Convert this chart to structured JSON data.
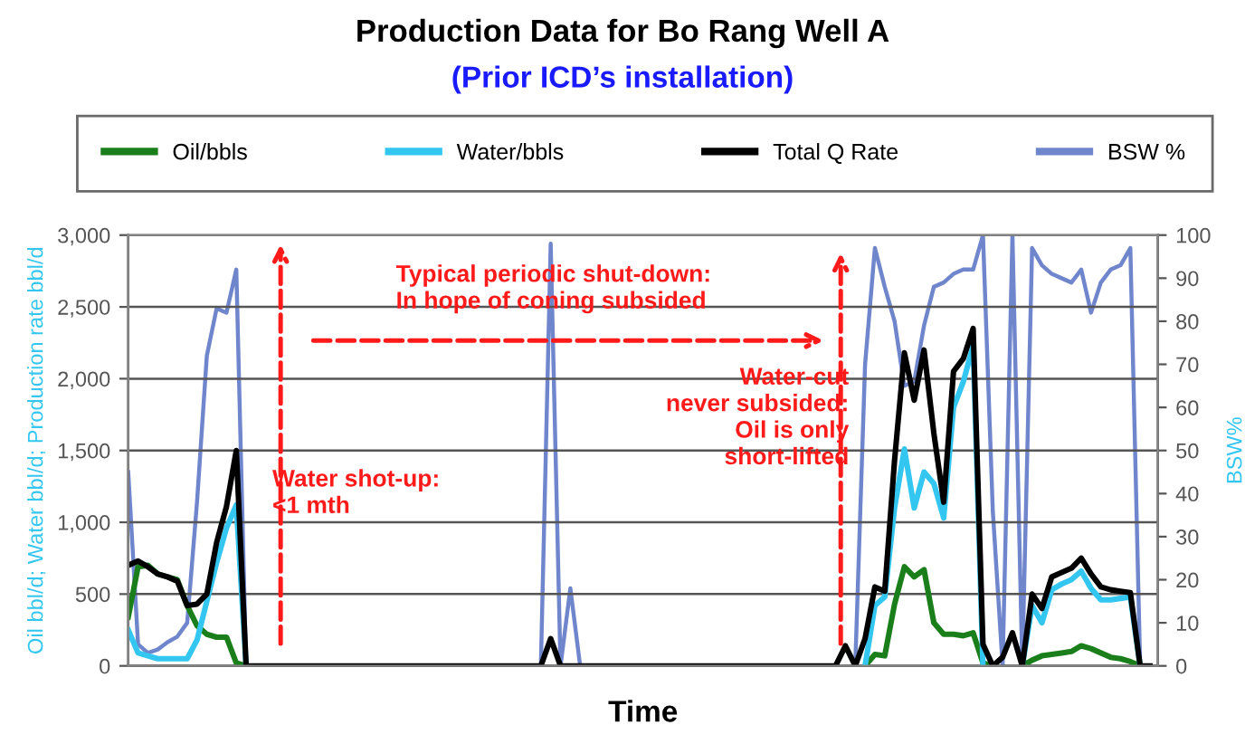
{
  "chart_data": {
    "type": "line",
    "title": "Production Data for Bo Rang Well A",
    "subtitle": "(Prior ICD’s installation)",
    "xlabel": "Time",
    "ylabel": "Oil bbl/d; Water bbl/d; Production rate bbl/d",
    "y2label": "BSW%",
    "categories": [
      null,
      null,
      null,
      null,
      null,
      null,
      null,
      null,
      null,
      null,
      null,
      null,
      null,
      null,
      null,
      null,
      null,
      null,
      null,
      null,
      null,
      null,
      null,
      null,
      null,
      null,
      null,
      null,
      null,
      null,
      null,
      null,
      null,
      null,
      null,
      null,
      null,
      null,
      null,
      null,
      null,
      null,
      null,
      null,
      null,
      null,
      null,
      null,
      null,
      null,
      null,
      null,
      null,
      null,
      null,
      null,
      null,
      null,
      null,
      null,
      null,
      null,
      null,
      null,
      null,
      null,
      null,
      null,
      null,
      null,
      null,
      null,
      null,
      null,
      null,
      null,
      null,
      null,
      null,
      null,
      null,
      null,
      null,
      null,
      null,
      null,
      null,
      null,
      null,
      null,
      null,
      null,
      null,
      null,
      null,
      null,
      null,
      null,
      null,
      null,
      null,
      null,
      null,
      null,
      null
    ],
    "ylim": [
      0,
      3000
    ],
    "yticks": [
      0,
      {
        "value": 500,
        "label": "500"
      },
      {
        "value": 1000,
        "label": "1,000"
      },
      {
        "value": 1500,
        "label": "1,500"
      },
      {
        "value": 2000,
        "label": "2,000"
      },
      {
        "value": 2500,
        "label": "2,500"
      },
      {
        "value": 3000,
        "label": "3,000"
      }
    ],
    "y2lim": [
      0,
      100
    ],
    "y2ticks": [
      0,
      10,
      20,
      30,
      40,
      50,
      60,
      70,
      80,
      90,
      100
    ],
    "grid": "y",
    "legend": "top",
    "marker": "none",
    "line_style": "solid",
    "annotations": [
      "Typical periodic shut-down:\nIn hope of coning subsided",
      "Water shot-up:\n<1 mth",
      "Water-cut\nnever subsided:\nOil is only\nshort-lifted"
    ],
    "series": [
      {
        "name": "Oil/bbls",
        "color": "#1a7f1a",
        "values": [
          340,
          690,
          700,
          640,
          620,
          600,
          420,
          280,
          220,
          200,
          200,
          20,
          0,
          null,
          null,
          null,
          null,
          null,
          null,
          null,
          null,
          null,
          null,
          null,
          null,
          null,
          null,
          null,
          null,
          null,
          null,
          null,
          null,
          null,
          null,
          null,
          null,
          null,
          null,
          null,
          null,
          null,
          null,
          null,
          null,
          null,
          null,
          null,
          null,
          null,
          null,
          null,
          null,
          null,
          null,
          null,
          null,
          null,
          null,
          null,
          null,
          null,
          null,
          null,
          null,
          null,
          null,
          null,
          null,
          null,
          null,
          null,
          null,
          null,
          null,
          0,
          80,
          70,
          430,
          690,
          620,
          670,
          300,
          220,
          220,
          210,
          230,
          20,
          0,
          null,
          null,
          0,
          40,
          70,
          80,
          90,
          100,
          140,
          120,
          90,
          60,
          50,
          30,
          0,
          null
        ]
      },
      {
        "name": "Water/bbls",
        "color": "#33c6f0",
        "values": [
          250,
          90,
          70,
          50,
          50,
          50,
          50,
          180,
          450,
          720,
          960,
          1120,
          0,
          null,
          null,
          null,
          null,
          null,
          null,
          null,
          null,
          null,
          null,
          null,
          null,
          null,
          null,
          null,
          null,
          null,
          null,
          null,
          null,
          null,
          null,
          null,
          null,
          null,
          null,
          null,
          null,
          null,
          null,
          null,
          null,
          null,
          null,
          null,
          null,
          null,
          null,
          null,
          null,
          null,
          null,
          null,
          null,
          null,
          null,
          null,
          null,
          null,
          null,
          null,
          null,
          null,
          null,
          null,
          null,
          null,
          null,
          null,
          null,
          null,
          null,
          0,
          420,
          480,
          1100,
          1510,
          1100,
          1350,
          1270,
          1030,
          1800,
          1980,
          2230,
          0,
          null,
          null,
          null,
          0,
          420,
          300,
          530,
          570,
          600,
          660,
          540,
          460,
          460,
          470,
          480,
          0,
          null
        ]
      },
      {
        "name": "Total Q Rate",
        "color": "#000000",
        "values": [
          700,
          730,
          690,
          640,
          620,
          590,
          420,
          430,
          500,
          860,
          1110,
          1500,
          0,
          0,
          0,
          0,
          0,
          0,
          0,
          0,
          0,
          0,
          0,
          0,
          0,
          0,
          0,
          0,
          0,
          0,
          0,
          0,
          0,
          0,
          0,
          0,
          0,
          0,
          0,
          0,
          0,
          0,
          0,
          190,
          0,
          0,
          0,
          0,
          0,
          0,
          0,
          0,
          0,
          0,
          0,
          0,
          0,
          0,
          0,
          0,
          0,
          0,
          0,
          0,
          0,
          0,
          0,
          0,
          0,
          0,
          0,
          0,
          0,
          140,
          0,
          190,
          550,
          520,
          1430,
          2180,
          1850,
          2200,
          1620,
          1140,
          2050,
          2140,
          2350,
          150,
          0,
          60,
          230,
          0,
          500,
          400,
          620,
          650,
          680,
          750,
          640,
          550,
          530,
          520,
          510,
          0,
          0
        ]
      },
      {
        "name": "BSW %",
        "color": "#6f86cc",
        "axis": "y2",
        "values": [
          45,
          5,
          3,
          3.8,
          5.5,
          6.8,
          10,
          38,
          72,
          83,
          82,
          92,
          0,
          null,
          null,
          null,
          null,
          null,
          null,
          null,
          null,
          null,
          null,
          null,
          null,
          null,
          null,
          null,
          null,
          null,
          null,
          null,
          null,
          null,
          null,
          null,
          null,
          null,
          null,
          null,
          null,
          null,
          0,
          98,
          0,
          18,
          0,
          null,
          null,
          null,
          null,
          null,
          null,
          null,
          null,
          null,
          null,
          null,
          null,
          null,
          null,
          null,
          null,
          null,
          null,
          null,
          null,
          null,
          null,
          null,
          null,
          null,
          null,
          null,
          0,
          70,
          97,
          88,
          80,
          65,
          66,
          79,
          88,
          89,
          91,
          92,
          92,
          100,
          36,
          0,
          100,
          0,
          97,
          93,
          91,
          90,
          89,
          92,
          82,
          89,
          92,
          93,
          97,
          0,
          null
        ]
      }
    ]
  }
}
